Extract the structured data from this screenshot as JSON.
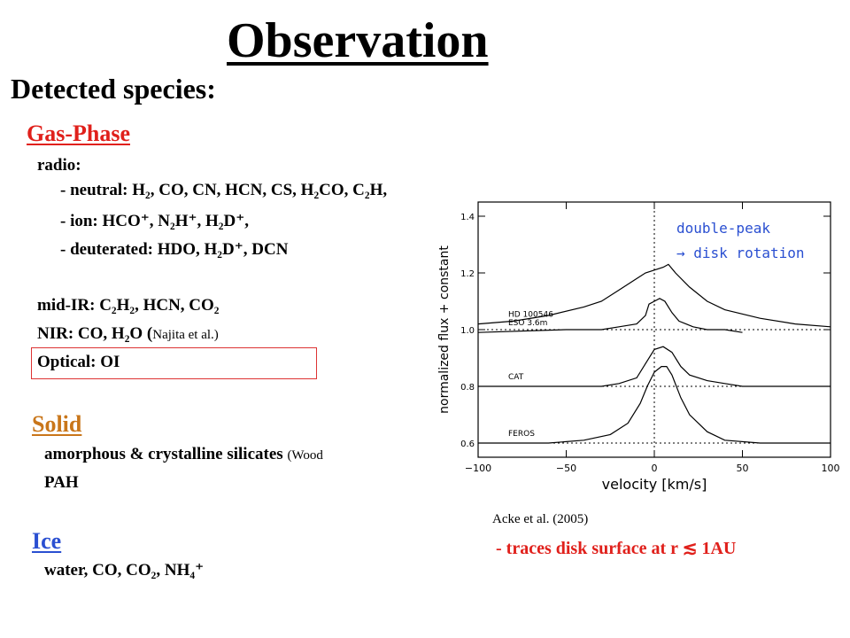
{
  "title": "Observation",
  "detected": "Detected species:",
  "gas": {
    "heading": "Gas-Phase",
    "radio": "radio:",
    "neutral": "- neutral: H₂, CO, CN, HCN, CS, H₂CO, C₂H,",
    "ion": "- ion: HCO⁺, N₂H⁺, H₂D⁺,",
    "deuterated": "- deuterated: HDO, H₂D⁺, DCN",
    "midir": "mid-IR: C₂H₂, HCN, CO₂",
    "nir": "NIR: CO, H₂O  (",
    "nir_ref": "Najita et al.)",
    "optical": "Optical: OI"
  },
  "solid": {
    "heading": "Solid",
    "silicates": "amorphous & crystalline silicates",
    "silicates_ref": "(Wood",
    "pah": "PAH"
  },
  "ice": {
    "heading": "Ice",
    "items": "water, CO, CO₂, NH₄⁺"
  },
  "figure": {
    "annotation_line1": "double-peak",
    "annotation_line2": "→ disk rotation",
    "citation": "Acke et al. (2005)",
    "traces": "- traces disk surface at r ≲ 1AU"
  },
  "chart_data": {
    "type": "line",
    "xlabel": "velocity [km/s]",
    "ylabel": "normalized flux + constant",
    "xlim": [
      -100,
      100
    ],
    "ylim": [
      0.55,
      1.45
    ],
    "xticks": [
      -100,
      -50,
      0,
      50,
      100
    ],
    "yticks": [
      0.6,
      0.8,
      1.0,
      1.2,
      1.4
    ],
    "vertical_line_x": 0,
    "series": [
      {
        "name": "HD 100546",
        "baseline": 1.0,
        "x": [
          -100,
          -80,
          -60,
          -40,
          -30,
          -20,
          -10,
          -5,
          0,
          5,
          8,
          12,
          20,
          30,
          40,
          60,
          80,
          100
        ],
        "values": [
          1.02,
          1.03,
          1.05,
          1.08,
          1.1,
          1.14,
          1.18,
          1.2,
          1.21,
          1.22,
          1.23,
          1.2,
          1.15,
          1.1,
          1.07,
          1.04,
          1.02,
          1.01
        ]
      },
      {
        "name": "ESO 3.6m",
        "baseline": 1.0,
        "x": [
          -100,
          -50,
          -30,
          -20,
          -10,
          -5,
          -3,
          0,
          3,
          6,
          10,
          14,
          18,
          22,
          30,
          40,
          50
        ],
        "values": [
          0.99,
          1.0,
          1.0,
          1.01,
          1.02,
          1.05,
          1.09,
          1.1,
          1.11,
          1.1,
          1.06,
          1.03,
          1.02,
          1.01,
          1.0,
          1.0,
          0.99
        ]
      },
      {
        "name": "CAT",
        "baseline": 0.8,
        "x": [
          -100,
          -50,
          -30,
          -20,
          -10,
          -5,
          0,
          5,
          10,
          15,
          20,
          30,
          40,
          50,
          70,
          100
        ],
        "values": [
          0.8,
          0.8,
          0.8,
          0.81,
          0.83,
          0.88,
          0.93,
          0.94,
          0.92,
          0.87,
          0.84,
          0.82,
          0.81,
          0.8,
          0.8,
          0.8
        ]
      },
      {
        "name": "FEROS",
        "baseline": 0.6,
        "x": [
          -100,
          -60,
          -40,
          -25,
          -15,
          -8,
          -4,
          0,
          4,
          7,
          10,
          15,
          20,
          30,
          40,
          60,
          80,
          100
        ],
        "values": [
          0.6,
          0.6,
          0.61,
          0.63,
          0.67,
          0.74,
          0.8,
          0.85,
          0.87,
          0.87,
          0.84,
          0.76,
          0.7,
          0.64,
          0.61,
          0.6,
          0.6,
          0.6
        ]
      }
    ]
  }
}
